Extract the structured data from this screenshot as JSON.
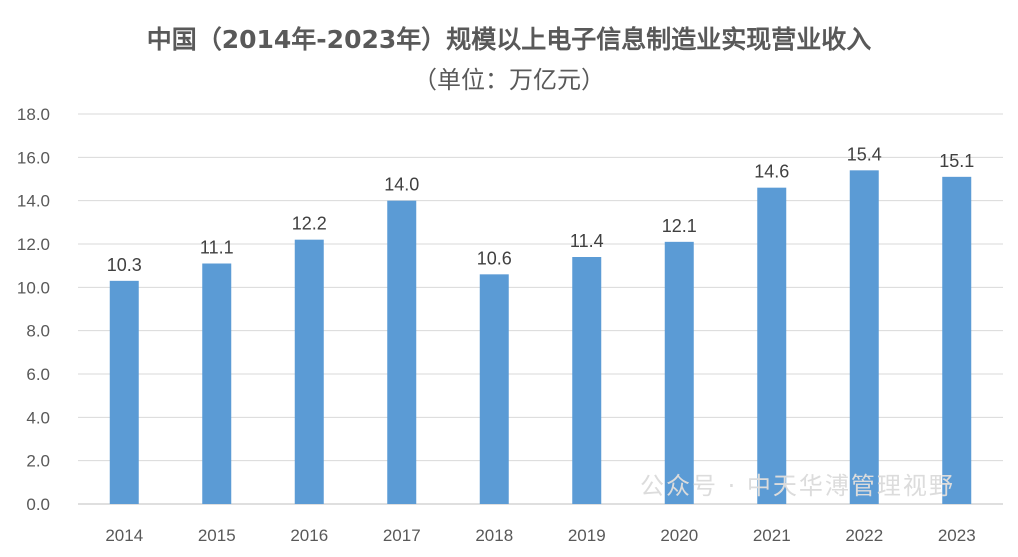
{
  "chart_data": {
    "type": "bar",
    "title": "中国（2014年-2023年）规模以上电子信息制造业实现营业收入",
    "subtitle": "（单位：万亿元）",
    "categories": [
      "2014",
      "2015",
      "2016",
      "2017",
      "2018",
      "2019",
      "2020",
      "2021",
      "2022",
      "2023"
    ],
    "values": [
      10.3,
      11.1,
      12.2,
      14.0,
      10.6,
      11.4,
      12.1,
      14.6,
      15.4,
      15.1
    ],
    "xlabel": "",
    "ylabel": "",
    "ylim": [
      0,
      18
    ],
    "yticks": [
      "0.0",
      "2.0",
      "4.0",
      "6.0",
      "8.0",
      "10.0",
      "12.0",
      "14.0",
      "16.0",
      "18.0"
    ],
    "grid": true,
    "legend": "none",
    "bar_color": "#5b9bd5"
  },
  "watermark": "公众号 · 中天华溥管理视野"
}
